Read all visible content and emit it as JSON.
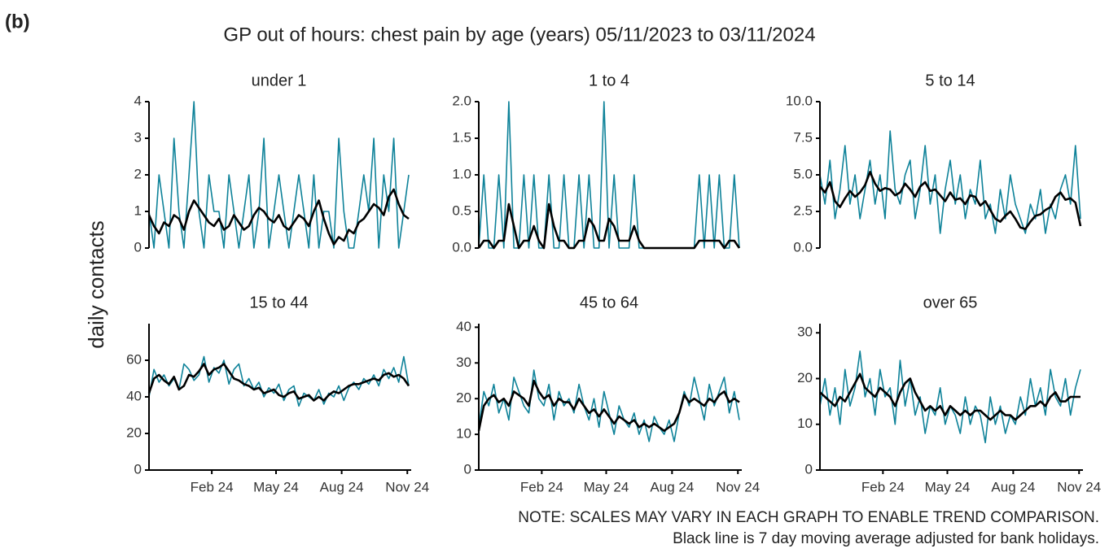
{
  "label": "(b)",
  "title": "GP out of hours: chest pain by age (years) 05/11/2023 to 03/11/2024",
  "y_label": "daily contacts",
  "notes": [
    "NOTE: SCALES MAY VARY IN EACH GRAPH TO ENABLE TREND COMPARISON.",
    "Black line is 7 day moving average adjusted for bank holidays."
  ],
  "chart_data": [
    {
      "type": "line",
      "title": "under 1",
      "xlim": [
        0,
        364
      ],
      "ylim": [
        0,
        4
      ],
      "yticks": [
        0,
        1,
        2,
        3,
        4
      ],
      "x": [
        0,
        7,
        14,
        21,
        28,
        35,
        42,
        49,
        56,
        63,
        70,
        77,
        84,
        91,
        98,
        105,
        112,
        119,
        126,
        133,
        140,
        147,
        154,
        161,
        168,
        175,
        182,
        189,
        196,
        203,
        210,
        217,
        224,
        231,
        238,
        245,
        252,
        259,
        266,
        273,
        280,
        287,
        294,
        301,
        308,
        315,
        322,
        329,
        336,
        343,
        350,
        357,
        364
      ],
      "series": [
        {
          "color": "#0e8299",
          "values": [
            1,
            0,
            2,
            1,
            0,
            3,
            1,
            0,
            2,
            4,
            1,
            0,
            2,
            1,
            1,
            0,
            2,
            1,
            0,
            1,
            2,
            0,
            1,
            3,
            0,
            1,
            2,
            1,
            0,
            1,
            2,
            1,
            0,
            2,
            0,
            1,
            1,
            0,
            3,
            1,
            0,
            0,
            1,
            2,
            1,
            3,
            0,
            2,
            1,
            3,
            0,
            1,
            2
          ]
        },
        {
          "color": "#000000",
          "values": [
            0.9,
            0.6,
            0.4,
            0.7,
            0.6,
            0.9,
            0.8,
            0.5,
            1.0,
            1.3,
            1.1,
            0.9,
            0.7,
            0.6,
            0.8,
            0.5,
            0.6,
            0.9,
            0.7,
            0.5,
            0.6,
            0.9,
            1.1,
            1.0,
            0.8,
            0.7,
            0.9,
            0.6,
            0.5,
            0.7,
            0.9,
            0.8,
            0.6,
            1.0,
            1.3,
            0.8,
            0.4,
            0.1,
            0.3,
            0.2,
            0.5,
            0.4,
            0.7,
            0.8,
            1.0,
            1.2,
            1.1,
            0.9,
            1.4,
            1.6,
            1.2,
            0.9,
            0.8
          ]
        }
      ]
    },
    {
      "type": "line",
      "title": "1 to 4",
      "xlim": [
        0,
        364
      ],
      "ylim": [
        0,
        2
      ],
      "yticks": [
        {
          "value": 0,
          "label": "0.0"
        },
        {
          "value": 0.5,
          "label": "0.5"
        },
        {
          "value": 1,
          "label": "1.0"
        },
        {
          "value": 1.5,
          "label": "1.5"
        },
        {
          "value": 2,
          "label": "2.0"
        }
      ],
      "x": [
        0,
        7,
        14,
        21,
        28,
        35,
        42,
        49,
        56,
        63,
        70,
        77,
        84,
        91,
        98,
        105,
        112,
        119,
        126,
        133,
        140,
        147,
        154,
        161,
        168,
        175,
        182,
        189,
        196,
        203,
        210,
        217,
        224,
        231,
        238,
        245,
        252,
        259,
        266,
        273,
        280,
        287,
        294,
        301,
        308,
        315,
        322,
        329,
        336,
        343,
        350,
        357,
        364
      ],
      "series": [
        {
          "color": "#0e8299",
          "values": [
            0,
            1,
            0,
            0,
            1,
            0,
            2,
            0,
            0,
            1,
            0,
            1,
            0,
            0,
            1,
            0,
            0,
            1,
            0,
            0,
            1,
            0,
            1,
            0,
            0,
            2,
            0,
            1,
            0,
            0,
            0,
            1,
            0,
            0,
            0,
            0,
            0,
            0,
            0,
            0,
            0,
            0,
            0,
            0,
            1,
            0,
            1,
            0,
            1,
            0,
            0,
            1,
            0
          ]
        },
        {
          "color": "#000000",
          "values": [
            0,
            0.1,
            0.1,
            0,
            0.1,
            0.1,
            0.6,
            0.3,
            0,
            0.1,
            0.1,
            0.3,
            0.1,
            0,
            0.6,
            0.3,
            0.1,
            0.1,
            0,
            0,
            0.1,
            0.1,
            0.4,
            0.3,
            0.1,
            0.1,
            0.4,
            0.3,
            0.1,
            0.1,
            0.1,
            0.3,
            0.1,
            0,
            0,
            0,
            0,
            0,
            0,
            0,
            0,
            0,
            0,
            0,
            0.1,
            0.1,
            0.1,
            0.1,
            0.1,
            0,
            0.1,
            0.1,
            0
          ]
        }
      ]
    },
    {
      "type": "line",
      "title": "5 to 14",
      "xlim": [
        0,
        364
      ],
      "ylim": [
        0,
        10
      ],
      "yticks": [
        {
          "value": 0,
          "label": "0.0"
        },
        {
          "value": 2.5,
          "label": "2.5"
        },
        {
          "value": 5,
          "label": "5.0"
        },
        {
          "value": 7.5,
          "label": "7.5"
        },
        {
          "value": 10,
          "label": "10.0"
        }
      ],
      "x": [
        0,
        7,
        14,
        21,
        28,
        35,
        42,
        49,
        56,
        63,
        70,
        77,
        84,
        91,
        98,
        105,
        112,
        119,
        126,
        133,
        140,
        147,
        154,
        161,
        168,
        175,
        182,
        189,
        196,
        203,
        210,
        217,
        224,
        231,
        238,
        245,
        252,
        259,
        266,
        273,
        280,
        287,
        294,
        301,
        308,
        315,
        322,
        329,
        336,
        343,
        350,
        357,
        364
      ],
      "series": [
        {
          "color": "#0e8299",
          "values": [
            5,
            3,
            6,
            2,
            4,
            7,
            3,
            5,
            2,
            4,
            6,
            3,
            5,
            2,
            8,
            4,
            3,
            5,
            6,
            2,
            4,
            7,
            3,
            5,
            1,
            4,
            6,
            3,
            5,
            2,
            4,
            3,
            6,
            2,
            3,
            1,
            4,
            2,
            5,
            3,
            2,
            1,
            3,
            2,
            4,
            1,
            3,
            2,
            4,
            5,
            3,
            7,
            2
          ]
        },
        {
          "color": "#000000",
          "values": [
            4.2,
            3.8,
            4.5,
            3.2,
            2.8,
            3.4,
            3.9,
            3.5,
            3.8,
            4.3,
            5.2,
            4.4,
            3.9,
            4.1,
            4.0,
            3.6,
            3.8,
            4.4,
            4.0,
            3.5,
            4.2,
            4.5,
            3.9,
            4.0,
            3.6,
            3.2,
            3.8,
            3.3,
            3.4,
            3.0,
            3.6,
            3.5,
            2.9,
            3.2,
            2.6,
            2.0,
            1.8,
            2.2,
            2.5,
            2.0,
            1.4,
            1.3,
            1.8,
            2.2,
            2.3,
            2.6,
            2.8,
            3.5,
            3.8,
            3.3,
            3.4,
            3.1,
            1.5
          ]
        }
      ]
    },
    {
      "type": "line",
      "title": "15 to 44",
      "xlim": [
        0,
        364
      ],
      "ylim": [
        0,
        80
      ],
      "yticks": [
        0,
        20,
        40,
        60
      ],
      "xticks": [
        {
          "value": 88,
          "label": "Feb 24"
        },
        {
          "value": 178,
          "label": "May 24"
        },
        {
          "value": 270,
          "label": "Aug 24"
        },
        {
          "value": 362,
          "label": "Nov 24"
        }
      ],
      "x": [
        0,
        7,
        14,
        21,
        28,
        35,
        42,
        49,
        56,
        63,
        70,
        77,
        84,
        91,
        98,
        105,
        112,
        119,
        126,
        133,
        140,
        147,
        154,
        161,
        168,
        175,
        182,
        189,
        196,
        203,
        210,
        217,
        224,
        231,
        238,
        245,
        252,
        259,
        266,
        273,
        280,
        287,
        294,
        301,
        308,
        315,
        322,
        329,
        336,
        343,
        350,
        357,
        364
      ],
      "series": [
        {
          "color": "#0e8299",
          "values": [
            40,
            55,
            48,
            52,
            46,
            50,
            44,
            58,
            55,
            49,
            52,
            62,
            48,
            56,
            53,
            60,
            47,
            55,
            58,
            46,
            50,
            44,
            48,
            40,
            45,
            42,
            47,
            38,
            44,
            46,
            35,
            42,
            40,
            38,
            44,
            36,
            42,
            40,
            46,
            38,
            45,
            48,
            44,
            50,
            47,
            52,
            46,
            55,
            50,
            56,
            48,
            62,
            46
          ]
        },
        {
          "color": "#000000",
          "values": [
            42,
            50,
            52,
            49,
            47,
            51,
            44,
            46,
            52,
            51,
            54,
            58,
            52,
            55,
            56,
            58,
            54,
            50,
            49,
            47,
            46,
            44,
            45,
            42,
            43,
            44,
            41,
            40,
            42,
            43,
            39,
            40,
            41,
            38,
            40,
            38,
            41,
            43,
            42,
            44,
            46,
            47,
            47,
            48,
            49,
            50,
            49,
            52,
            53,
            51,
            52,
            50,
            46
          ]
        }
      ]
    },
    {
      "type": "line",
      "title": "45 to 64",
      "xlim": [
        0,
        364
      ],
      "ylim": [
        0,
        41
      ],
      "yticks": [
        0,
        10,
        20,
        30,
        40
      ],
      "xticks": [
        {
          "value": 88,
          "label": "Feb 24"
        },
        {
          "value": 178,
          "label": "May 24"
        },
        {
          "value": 270,
          "label": "Aug 24"
        },
        {
          "value": 362,
          "label": "Nov 24"
        }
      ],
      "x": [
        0,
        7,
        14,
        21,
        28,
        35,
        42,
        49,
        56,
        63,
        70,
        77,
        84,
        91,
        98,
        105,
        112,
        119,
        126,
        133,
        140,
        147,
        154,
        161,
        168,
        175,
        182,
        189,
        196,
        203,
        210,
        217,
        224,
        231,
        238,
        245,
        252,
        259,
        266,
        273,
        280,
        287,
        294,
        301,
        308,
        315,
        322,
        329,
        336,
        343,
        350,
        357,
        364
      ],
      "series": [
        {
          "color": "#0e8299",
          "values": [
            12,
            22,
            18,
            24,
            16,
            20,
            14,
            26,
            22,
            18,
            16,
            28,
            20,
            18,
            24,
            14,
            22,
            18,
            20,
            16,
            24,
            18,
            14,
            20,
            12,
            22,
            16,
            10,
            18,
            14,
            12,
            16,
            10,
            14,
            8,
            15,
            12,
            10,
            14,
            8,
            16,
            22,
            18,
            26,
            20,
            14,
            24,
            18,
            22,
            26,
            16,
            22,
            14
          ]
        },
        {
          "color": "#000000",
          "values": [
            11,
            18,
            20,
            21,
            19,
            20,
            18,
            22,
            21,
            20,
            18,
            25,
            22,
            20,
            21,
            18,
            20,
            19,
            19,
            17,
            20,
            18,
            16,
            17,
            15,
            17,
            15,
            13,
            15,
            14,
            13,
            14,
            12,
            13,
            12,
            13,
            12,
            11,
            12,
            13,
            16,
            21,
            19,
            20,
            19,
            18,
            20,
            19,
            21,
            22,
            19,
            20,
            19
          ]
        }
      ]
    },
    {
      "type": "line",
      "title": "over 65",
      "xlim": [
        0,
        364
      ],
      "ylim": [
        0,
        32
      ],
      "yticks": [
        0,
        10,
        20,
        30
      ],
      "xticks": [
        {
          "value": 88,
          "label": "Feb 24"
        },
        {
          "value": 178,
          "label": "May 24"
        },
        {
          "value": 270,
          "label": "Aug 24"
        },
        {
          "value": 362,
          "label": "Nov 24"
        }
      ],
      "x": [
        0,
        7,
        14,
        21,
        28,
        35,
        42,
        49,
        56,
        63,
        70,
        77,
        84,
        91,
        98,
        105,
        112,
        119,
        126,
        133,
        140,
        147,
        154,
        161,
        168,
        175,
        182,
        189,
        196,
        203,
        210,
        217,
        224,
        231,
        238,
        245,
        252,
        259,
        266,
        273,
        280,
        287,
        294,
        301,
        308,
        315,
        322,
        329,
        336,
        343,
        350,
        357,
        364
      ],
      "series": [
        {
          "color": "#0e8299",
          "values": [
            14,
            20,
            12,
            18,
            10,
            22,
            14,
            18,
            26,
            16,
            20,
            12,
            22,
            16,
            18,
            10,
            24,
            14,
            20,
            12,
            16,
            8,
            14,
            12,
            18,
            10,
            14,
            12,
            8,
            16,
            10,
            14,
            12,
            6,
            16,
            10,
            14,
            8,
            12,
            10,
            16,
            12,
            20,
            14,
            18,
            12,
            22,
            16,
            14,
            20,
            12,
            18,
            22
          ]
        },
        {
          "color": "#000000",
          "values": [
            17,
            16,
            15,
            14,
            16,
            15,
            17,
            19,
            21,
            18,
            17,
            16,
            18,
            17,
            16,
            14,
            17,
            19,
            20,
            17,
            15,
            13,
            14,
            13,
            14,
            12,
            14,
            13,
            12,
            13,
            12,
            13,
            13,
            12,
            11,
            12,
            13,
            12,
            12,
            11,
            12,
            13,
            14,
            14,
            15,
            14,
            16,
            17,
            15,
            15,
            16,
            16,
            16
          ]
        }
      ]
    }
  ]
}
